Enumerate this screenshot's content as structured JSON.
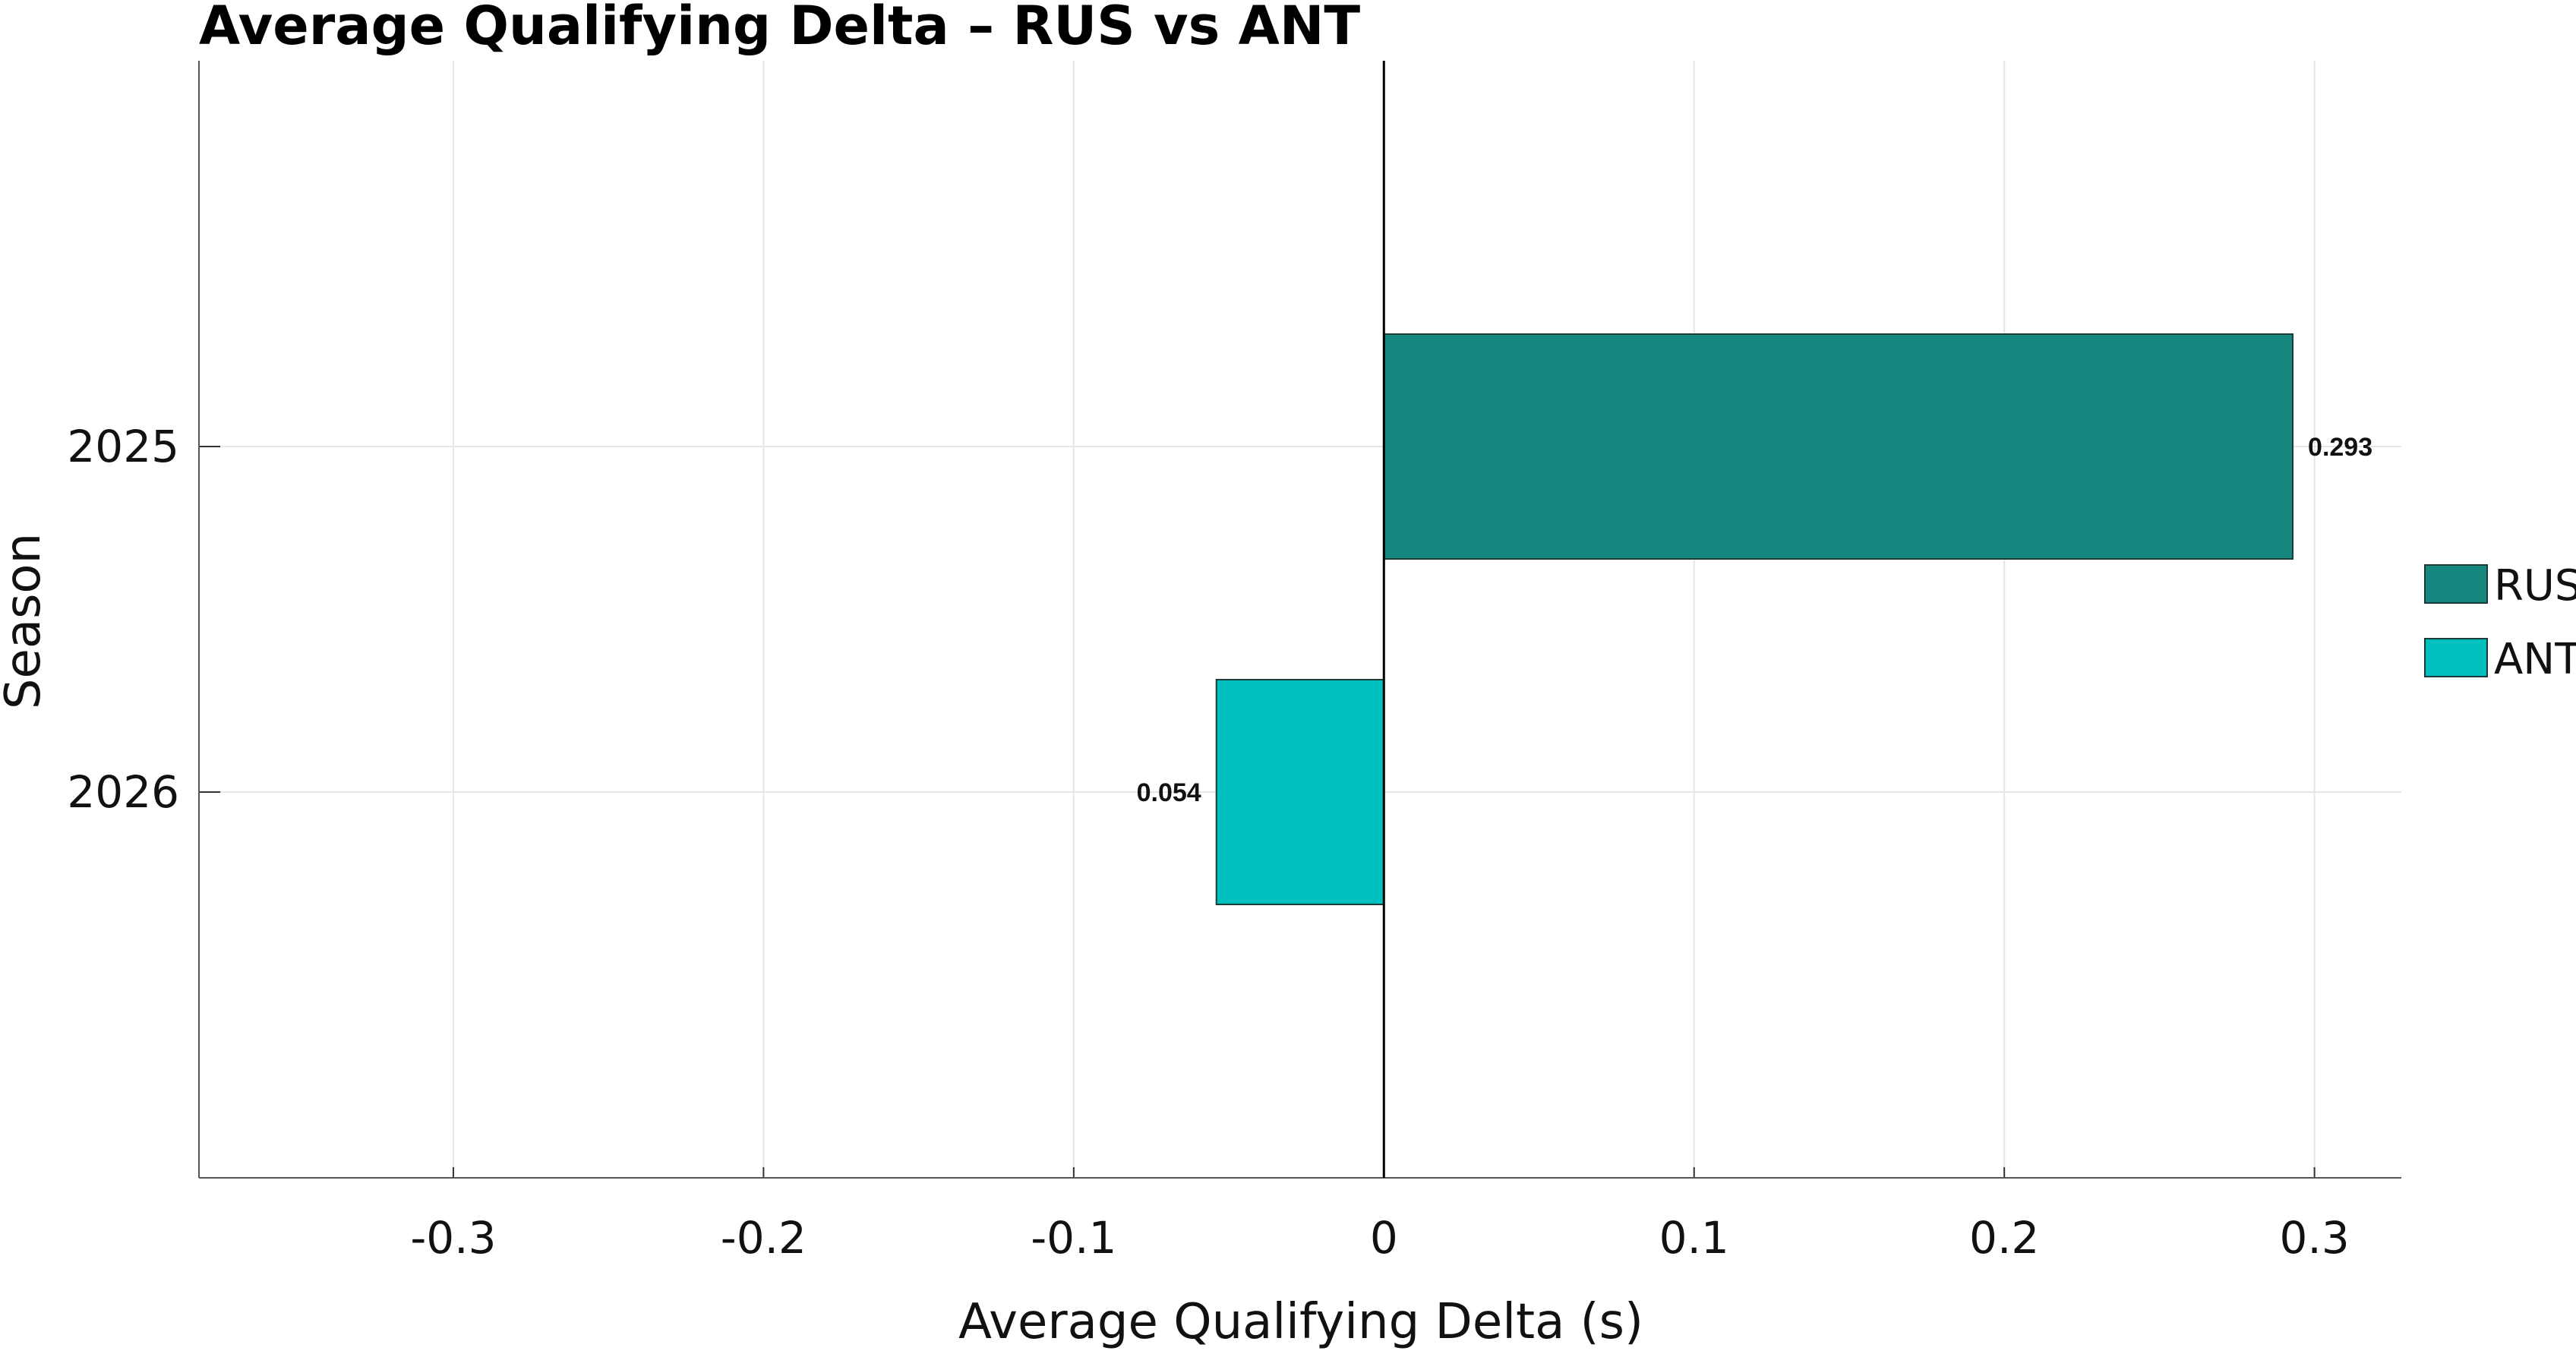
{
  "chart_data": {
    "type": "bar",
    "orientation": "horizontal",
    "title": "Average Qualifying Delta – RUS vs ANT",
    "xlabel": "Average Qualifying Delta (s)",
    "ylabel": "Season",
    "categories": [
      "2025",
      "2026"
    ],
    "series": [
      {
        "name": "RUS",
        "color": "#16877f",
        "values": [
          0.293,
          null
        ]
      },
      {
        "name": "ANT",
        "color": "#00bfbf",
        "values": [
          null,
          -0.054
        ]
      }
    ],
    "data_labels": [
      "0.293",
      "0.054"
    ],
    "xlim": [
      -0.382,
      0.328
    ],
    "xticks": [
      -0.3,
      -0.2,
      -0.1,
      0,
      0.1,
      0.2,
      0.3
    ],
    "xtick_labels": [
      "-0.3",
      "-0.2",
      "-0.1",
      "0",
      "0.1",
      "0.2",
      "0.3"
    ],
    "grid": true,
    "legend": "right"
  }
}
